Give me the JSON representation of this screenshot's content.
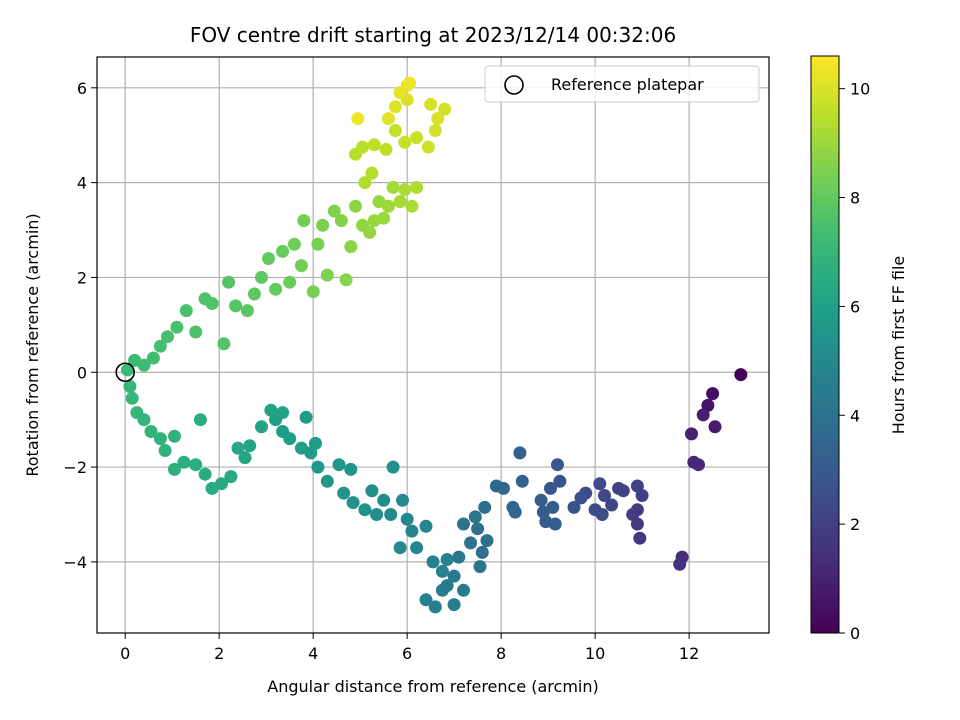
{
  "chart_data": {
    "type": "scatter",
    "title": "FOV centre drift starting at 2023/12/14 00:32:06",
    "xlabel": "Angular distance from reference (arcmin)",
    "ylabel": "Rotation from reference (arcmin)",
    "xlim": [
      -0.6,
      13.7
    ],
    "ylim": [
      -5.5,
      6.65
    ],
    "x_ticks": [
      0,
      2,
      4,
      6,
      8,
      10,
      12
    ],
    "y_ticks": [
      -4,
      -2,
      0,
      2,
      4,
      6
    ],
    "grid": true,
    "colormap": "viridis",
    "colorbar": {
      "label": "Hours from first FF file",
      "range": [
        0,
        10.6
      ],
      "ticks": [
        0,
        2,
        4,
        6,
        8,
        10
      ]
    },
    "legend": {
      "position": "top-right",
      "entries": [
        {
          "label": "Reference platepar",
          "marker": "open-circle"
        }
      ]
    },
    "reference_point": {
      "x": 0,
      "y": 0
    },
    "series": [
      {
        "c_key": "hours",
        "points": [
          {
            "x": 13.1,
            "y": -0.05,
            "hours": 0.05
          },
          {
            "x": 12.5,
            "y": -0.45,
            "hours": 0.4
          },
          {
            "x": 12.4,
            "y": -0.7,
            "hours": 0.6
          },
          {
            "x": 12.55,
            "y": -1.15,
            "hours": 0.8
          },
          {
            "x": 12.3,
            "y": -0.9,
            "hours": 0.9
          },
          {
            "x": 12.05,
            "y": -1.3,
            "hours": 1.0
          },
          {
            "x": 12.1,
            "y": -1.9,
            "hours": 1.1
          },
          {
            "x": 12.2,
            "y": -1.95,
            "hours": 1.2
          },
          {
            "x": 11.85,
            "y": -3.9,
            "hours": 1.35
          },
          {
            "x": 11.8,
            "y": -4.05,
            "hours": 1.5
          },
          {
            "x": 10.95,
            "y": -3.5,
            "hours": 1.7
          },
          {
            "x": 10.9,
            "y": -3.2,
            "hours": 1.8
          },
          {
            "x": 10.9,
            "y": -2.9,
            "hours": 1.85
          },
          {
            "x": 10.8,
            "y": -3.0,
            "hours": 1.9
          },
          {
            "x": 11.0,
            "y": -2.6,
            "hours": 2.0
          },
          {
            "x": 10.9,
            "y": -2.4,
            "hours": 2.05
          },
          {
            "x": 10.6,
            "y": -2.5,
            "hours": 2.1
          },
          {
            "x": 10.5,
            "y": -2.45,
            "hours": 2.15
          },
          {
            "x": 10.35,
            "y": -2.8,
            "hours": 2.2
          },
          {
            "x": 10.2,
            "y": -2.6,
            "hours": 2.3
          },
          {
            "x": 10.1,
            "y": -2.35,
            "hours": 2.35
          },
          {
            "x": 10.0,
            "y": -2.9,
            "hours": 2.4
          },
          {
            "x": 10.15,
            "y": -3.0,
            "hours": 2.45
          },
          {
            "x": 9.8,
            "y": -2.55,
            "hours": 2.5
          },
          {
            "x": 9.7,
            "y": -2.65,
            "hours": 2.6
          },
          {
            "x": 9.55,
            "y": -2.85,
            "hours": 2.7
          },
          {
            "x": 9.25,
            "y": -2.3,
            "hours": 2.8
          },
          {
            "x": 9.2,
            "y": -1.95,
            "hours": 2.85
          },
          {
            "x": 9.05,
            "y": -2.45,
            "hours": 2.9
          },
          {
            "x": 8.9,
            "y": -2.95,
            "hours": 3.0
          },
          {
            "x": 9.1,
            "y": -2.85,
            "hours": 3.05
          },
          {
            "x": 8.85,
            "y": -2.7,
            "hours": 3.1
          },
          {
            "x": 8.95,
            "y": -3.15,
            "hours": 3.15
          },
          {
            "x": 9.15,
            "y": -3.2,
            "hours": 3.2
          },
          {
            "x": 8.45,
            "y": -2.3,
            "hours": 3.3
          },
          {
            "x": 8.4,
            "y": -1.7,
            "hours": 3.35
          },
          {
            "x": 8.25,
            "y": -2.85,
            "hours": 3.4
          },
          {
            "x": 8.3,
            "y": -2.95,
            "hours": 3.45
          },
          {
            "x": 8.05,
            "y": -2.45,
            "hours": 3.5
          },
          {
            "x": 7.9,
            "y": -2.4,
            "hours": 3.6
          },
          {
            "x": 7.65,
            "y": -2.85,
            "hours": 3.7
          },
          {
            "x": 7.5,
            "y": -3.3,
            "hours": 3.8
          },
          {
            "x": 7.7,
            "y": -3.55,
            "hours": 3.85
          },
          {
            "x": 7.6,
            "y": -3.8,
            "hours": 3.9
          },
          {
            "x": 7.35,
            "y": -3.6,
            "hours": 4.0
          },
          {
            "x": 7.2,
            "y": -3.2,
            "hours": 4.05
          },
          {
            "x": 7.45,
            "y": -3.05,
            "hours": 4.1
          },
          {
            "x": 7.55,
            "y": -4.1,
            "hours": 4.15
          },
          {
            "x": 7.1,
            "y": -3.9,
            "hours": 4.2
          },
          {
            "x": 7.0,
            "y": -4.3,
            "hours": 4.3
          },
          {
            "x": 6.85,
            "y": -4.5,
            "hours": 4.35
          },
          {
            "x": 6.75,
            "y": -4.6,
            "hours": 4.4
          },
          {
            "x": 7.2,
            "y": -4.6,
            "hours": 4.45
          },
          {
            "x": 7.0,
            "y": -4.9,
            "hours": 4.5
          },
          {
            "x": 6.6,
            "y": -4.95,
            "hours": 4.55
          },
          {
            "x": 6.4,
            "y": -4.8,
            "hours": 4.6
          },
          {
            "x": 6.75,
            "y": -4.2,
            "hours": 4.65
          },
          {
            "x": 6.85,
            "y": -3.95,
            "hours": 4.7
          },
          {
            "x": 6.55,
            "y": -4.0,
            "hours": 4.75
          },
          {
            "x": 6.2,
            "y": -3.7,
            "hours": 4.8
          },
          {
            "x": 6.1,
            "y": -3.35,
            "hours": 4.85
          },
          {
            "x": 6.4,
            "y": -3.25,
            "hours": 4.9
          },
          {
            "x": 5.85,
            "y": -3.7,
            "hours": 4.95
          },
          {
            "x": 6.0,
            "y": -3.1,
            "hours": 5.0
          },
          {
            "x": 5.9,
            "y": -2.7,
            "hours": 5.05
          },
          {
            "x": 5.65,
            "y": -3.0,
            "hours": 5.1
          },
          {
            "x": 5.5,
            "y": -2.7,
            "hours": 5.15
          },
          {
            "x": 5.35,
            "y": -3.0,
            "hours": 5.2
          },
          {
            "x": 5.25,
            "y": -2.5,
            "hours": 5.25
          },
          {
            "x": 5.7,
            "y": -2.0,
            "hours": 5.3
          },
          {
            "x": 5.1,
            "y": -2.9,
            "hours": 5.35
          },
          {
            "x": 4.85,
            "y": -2.75,
            "hours": 5.4
          },
          {
            "x": 4.65,
            "y": -2.55,
            "hours": 5.45
          },
          {
            "x": 4.8,
            "y": -2.05,
            "hours": 5.5
          },
          {
            "x": 4.55,
            "y": -1.95,
            "hours": 5.55
          },
          {
            "x": 4.3,
            "y": -2.3,
            "hours": 5.6
          },
          {
            "x": 4.1,
            "y": -2.0,
            "hours": 5.65
          },
          {
            "x": 4.05,
            "y": -1.5,
            "hours": 5.7
          },
          {
            "x": 3.85,
            "y": -0.95,
            "hours": 5.75
          },
          {
            "x": 3.95,
            "y": -1.7,
            "hours": 5.8
          },
          {
            "x": 3.75,
            "y": -1.6,
            "hours": 5.85
          },
          {
            "x": 3.5,
            "y": -1.4,
            "hours": 5.9
          },
          {
            "x": 3.35,
            "y": -1.25,
            "hours": 5.95
          },
          {
            "x": 3.2,
            "y": -1.0,
            "hours": 6.0
          },
          {
            "x": 3.1,
            "y": -0.8,
            "hours": 6.05
          },
          {
            "x": 3.35,
            "y": -0.85,
            "hours": 6.1
          },
          {
            "x": 2.9,
            "y": -1.15,
            "hours": 6.15
          },
          {
            "x": 2.65,
            "y": -1.55,
            "hours": 6.2
          },
          {
            "x": 2.55,
            "y": -1.8,
            "hours": 6.25
          },
          {
            "x": 2.4,
            "y": -1.6,
            "hours": 6.3
          },
          {
            "x": 2.25,
            "y": -2.2,
            "hours": 6.35
          },
          {
            "x": 2.05,
            "y": -2.35,
            "hours": 6.4
          },
          {
            "x": 1.85,
            "y": -2.45,
            "hours": 6.45
          },
          {
            "x": 1.7,
            "y": -2.15,
            "hours": 6.5
          },
          {
            "x": 1.6,
            "y": -1.0,
            "hours": 6.55
          },
          {
            "x": 1.5,
            "y": -1.95,
            "hours": 6.6
          },
          {
            "x": 1.25,
            "y": -1.9,
            "hours": 6.65
          },
          {
            "x": 1.05,
            "y": -2.05,
            "hours": 6.7
          },
          {
            "x": 1.05,
            "y": -1.35,
            "hours": 6.75
          },
          {
            "x": 0.85,
            "y": -1.65,
            "hours": 6.8
          },
          {
            "x": 0.75,
            "y": -1.4,
            "hours": 6.85
          },
          {
            "x": 0.55,
            "y": -1.25,
            "hours": 6.9
          },
          {
            "x": 0.4,
            "y": -1.0,
            "hours": 6.95
          },
          {
            "x": 0.25,
            "y": -0.85,
            "hours": 7.0
          },
          {
            "x": 0.15,
            "y": -0.55,
            "hours": 7.05
          },
          {
            "x": 0.1,
            "y": -0.3,
            "hours": 7.1
          },
          {
            "x": 0.05,
            "y": 0.05,
            "hours": 7.15
          },
          {
            "x": 0.2,
            "y": 0.25,
            "hours": 7.2
          },
          {
            "x": 0.4,
            "y": 0.15,
            "hours": 7.25
          },
          {
            "x": 0.6,
            "y": 0.3,
            "hours": 7.3
          },
          {
            "x": 0.75,
            "y": 0.55,
            "hours": 7.35
          },
          {
            "x": 0.9,
            "y": 0.75,
            "hours": 7.4
          },
          {
            "x": 1.1,
            "y": 0.95,
            "hours": 7.45
          },
          {
            "x": 1.3,
            "y": 1.3,
            "hours": 7.5
          },
          {
            "x": 1.5,
            "y": 0.85,
            "hours": 7.55
          },
          {
            "x": 1.7,
            "y": 1.55,
            "hours": 7.6
          },
          {
            "x": 1.85,
            "y": 1.45,
            "hours": 7.65
          },
          {
            "x": 2.1,
            "y": 0.6,
            "hours": 7.7
          },
          {
            "x": 2.2,
            "y": 1.9,
            "hours": 7.75
          },
          {
            "x": 2.35,
            "y": 1.4,
            "hours": 7.8
          },
          {
            "x": 2.6,
            "y": 1.3,
            "hours": 7.85
          },
          {
            "x": 2.75,
            "y": 1.65,
            "hours": 7.9
          },
          {
            "x": 2.9,
            "y": 2.0,
            "hours": 7.95
          },
          {
            "x": 3.05,
            "y": 2.4,
            "hours": 8.0
          },
          {
            "x": 3.2,
            "y": 1.75,
            "hours": 8.05
          },
          {
            "x": 3.35,
            "y": 2.55,
            "hours": 8.1
          },
          {
            "x": 3.5,
            "y": 1.9,
            "hours": 8.15
          },
          {
            "x": 3.6,
            "y": 2.7,
            "hours": 8.2
          },
          {
            "x": 3.75,
            "y": 2.25,
            "hours": 8.25
          },
          {
            "x": 3.8,
            "y": 3.2,
            "hours": 8.3
          },
          {
            "x": 4.0,
            "y": 1.7,
            "hours": 8.35
          },
          {
            "x": 4.1,
            "y": 2.7,
            "hours": 8.4
          },
          {
            "x": 4.2,
            "y": 3.1,
            "hours": 8.45
          },
          {
            "x": 4.3,
            "y": 2.05,
            "hours": 8.5
          },
          {
            "x": 4.45,
            "y": 3.4,
            "hours": 8.55
          },
          {
            "x": 4.6,
            "y": 3.2,
            "hours": 8.6
          },
          {
            "x": 4.7,
            "y": 1.95,
            "hours": 8.65
          },
          {
            "x": 4.8,
            "y": 2.65,
            "hours": 8.7
          },
          {
            "x": 4.9,
            "y": 3.5,
            "hours": 8.75
          },
          {
            "x": 5.05,
            "y": 3.1,
            "hours": 8.8
          },
          {
            "x": 5.2,
            "y": 2.95,
            "hours": 8.85
          },
          {
            "x": 5.3,
            "y": 3.2,
            "hours": 8.9
          },
          {
            "x": 5.4,
            "y": 3.6,
            "hours": 8.95
          },
          {
            "x": 5.5,
            "y": 3.25,
            "hours": 9.0
          },
          {
            "x": 5.6,
            "y": 3.5,
            "hours": 9.05
          },
          {
            "x": 5.7,
            "y": 3.9,
            "hours": 9.1
          },
          {
            "x": 5.85,
            "y": 3.6,
            "hours": 9.15
          },
          {
            "x": 5.95,
            "y": 3.85,
            "hours": 9.2
          },
          {
            "x": 6.1,
            "y": 3.5,
            "hours": 9.25
          },
          {
            "x": 6.2,
            "y": 3.9,
            "hours": 9.3
          },
          {
            "x": 5.1,
            "y": 4.0,
            "hours": 9.35
          },
          {
            "x": 5.25,
            "y": 4.2,
            "hours": 9.4
          },
          {
            "x": 4.9,
            "y": 4.6,
            "hours": 9.45
          },
          {
            "x": 5.05,
            "y": 4.75,
            "hours": 9.5
          },
          {
            "x": 5.3,
            "y": 4.8,
            "hours": 9.55
          },
          {
            "x": 5.55,
            "y": 4.7,
            "hours": 9.6
          },
          {
            "x": 5.75,
            "y": 5.1,
            "hours": 9.65
          },
          {
            "x": 5.95,
            "y": 4.85,
            "hours": 9.7
          },
          {
            "x": 6.2,
            "y": 4.95,
            "hours": 9.75
          },
          {
            "x": 6.45,
            "y": 4.75,
            "hours": 9.8
          },
          {
            "x": 6.6,
            "y": 5.1,
            "hours": 9.85
          },
          {
            "x": 6.8,
            "y": 5.55,
            "hours": 9.9
          },
          {
            "x": 6.5,
            "y": 5.65,
            "hours": 9.95
          },
          {
            "x": 6.65,
            "y": 5.35,
            "hours": 10.0
          },
          {
            "x": 6.0,
            "y": 5.75,
            "hours": 10.05
          },
          {
            "x": 5.75,
            "y": 5.6,
            "hours": 10.1
          },
          {
            "x": 5.6,
            "y": 5.35,
            "hours": 10.15
          },
          {
            "x": 5.85,
            "y": 5.9,
            "hours": 10.2
          },
          {
            "x": 6.0,
            "y": 6.05,
            "hours": 10.25
          },
          {
            "x": 6.05,
            "y": 6.1,
            "hours": 10.3
          },
          {
            "x": 4.95,
            "y": 5.35,
            "hours": 10.35
          }
        ]
      }
    ]
  }
}
